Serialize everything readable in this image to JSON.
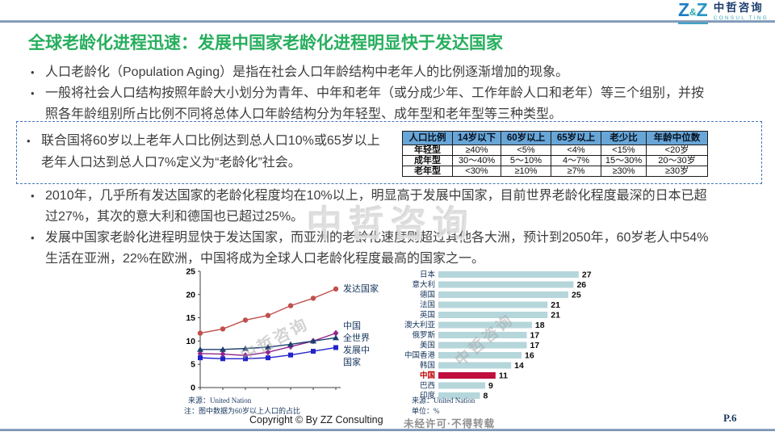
{
  "logo": {
    "z_left": "Z",
    "amp": "&",
    "z_right": "Z",
    "company_cn": "中哲咨询",
    "company_en": "CONSUL TING"
  },
  "title": "全球老龄化进程迅速：发展中国家老龄化进程明显快于发达国家",
  "bullets_top": [
    {
      "text": "人口老龄化（Population Aging）是指在社会人口年龄结构中老年人的比例逐渐增加的现象。"
    },
    {
      "text": "一般将社会人口结构按照年龄大小划分为青年、中年和老年（或分成少年、工作年龄人口和老年）等三个组别，并按照各年龄组别所占比例不同将总体人口年龄结构分为年轻型、成年型和老年型等三种类型。"
    }
  ],
  "highlight_box": {
    "text": "联合国将60岁以上老年人口比例达到总人口10%或65岁以上老年人口达到总人口7%定义为“老龄化”社会。"
  },
  "age_table": {
    "headers": [
      "人口比例",
      "14岁以下",
      "60岁以上",
      "65岁以上",
      "老少比",
      "年龄中位数"
    ],
    "rows": [
      {
        "label": "年轻型",
        "cells": [
          "≥40%",
          "<5%",
          "<4%",
          "<15%",
          "<20岁"
        ]
      },
      {
        "label": "成年型",
        "cells": [
          "30～40%",
          "5～10%",
          "4～7%",
          "15～30%",
          "20～30岁"
        ]
      },
      {
        "label": "老年型",
        "cells": [
          "<30%",
          "≥10%",
          "≥7%",
          "≥30%",
          "≥30岁"
        ]
      }
    ]
  },
  "bullets_bottom": [
    {
      "text": "2010年，几乎所有发达国家的老龄化程度均在10%以上，明显高于发展中国家，目前世界老龄化程度最深的日本已超过27%，其次的意大利和德国也已超过25%。"
    },
    {
      "text": "发展中国家老龄化进程明显快于发达国家，而亚洲的老龄化速度则超过其他各大洲，预计到2050年，60岁老人中54%生活在亚洲，22%在欧洲，中国将成为全球人口老龄化程度最高的国家之一。"
    }
  ],
  "watermarks": {
    "center": "中哲咨询",
    "diagonal": "中哲咨询",
    "restriction": "未经许可·不得转载"
  },
  "footer": {
    "copyright": "Copyright © By ZZ Consulting",
    "page": "P.6"
  },
  "colors": {
    "title_green": "#27ae5e",
    "rule_blue": "#7590b0",
    "box_border_blue": "#4277bd",
    "table_header_bg": "#68a6d7",
    "navy_text": "#17365d",
    "china_red": "#c00000"
  },
  "chart_data": [
    {
      "type": "line",
      "ylim": [
        0,
        25
      ],
      "yticks": [
        0,
        5,
        10,
        15,
        20,
        25
      ],
      "x_points": 7,
      "x_tick_labels": [],
      "grid": false,
      "legend_position": "right",
      "series": [
        {
          "name": "发达国家",
          "color": "#c0504d",
          "marker": "circle",
          "values": [
            11.7,
            12.6,
            14.5,
            15.5,
            17.6,
            19.2,
            21.2
          ]
        },
        {
          "name": "中国",
          "color": "#92278f",
          "marker": "diamond",
          "values": [
            7.3,
            7.2,
            6.9,
            7.6,
            8.8,
            10.0,
            11.7
          ]
        },
        {
          "name": "全世界",
          "color": "#1b3f6e",
          "marker": "triangle",
          "values": [
            8.2,
            8.2,
            8.4,
            8.7,
            9.3,
            10.0,
            10.7
          ]
        },
        {
          "name": "发展中国家",
          "color": "#2323cc",
          "marker": "square",
          "values": [
            6.4,
            6.2,
            6.2,
            6.4,
            7.0,
            7.8,
            8.6
          ]
        }
      ],
      "source": "来源：United Nation",
      "note": "注：图中数据为60岁以上人口的占比"
    },
    {
      "type": "bar",
      "orientation": "horizontal",
      "categories": [
        "日本",
        "意大利",
        "德国",
        "法国",
        "英国",
        "澳大利亚",
        "俄罗斯",
        "美国",
        "中国香港",
        "韩国",
        "中国",
        "巴西",
        "印度"
      ],
      "values": [
        27,
        26,
        25,
        21,
        21,
        18,
        17,
        17,
        16,
        14,
        11,
        9,
        8
      ],
      "highlight_category": "中国",
      "bar_color": "#b5d6db",
      "highlight_color": "#c00f3d",
      "source": "来源：United Nation",
      "unit": "单位：%"
    }
  ]
}
